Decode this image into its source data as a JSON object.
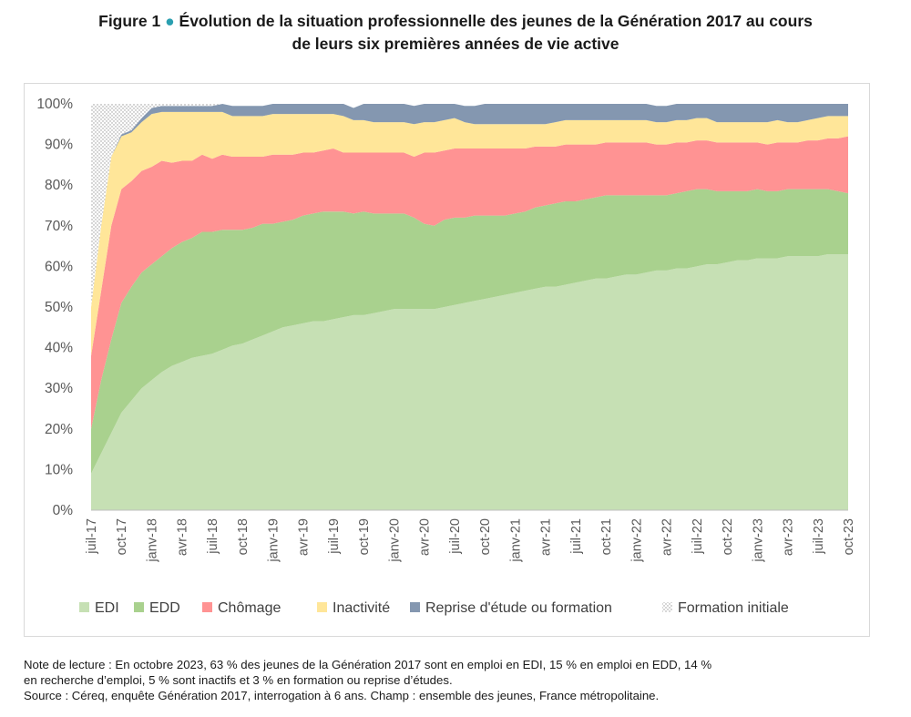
{
  "figure": {
    "label": "Figure 1",
    "bullet": "●",
    "title_line1": "Évolution de la situation professionnelle des jeunes de la Génération 2017 au cours",
    "title_line2": "de leurs six premières années de vie active"
  },
  "colors": {
    "EDI": "#c6e0b4",
    "EDD": "#a9d18e",
    "Chômage": "#ff9393",
    "Inactivité": "#ffe699",
    "Reprise d'étude ou formation": "#8497b0",
    "Formation initiale": "#f2f2f2",
    "accent": "#2a9fb0"
  },
  "notes": {
    "line1": "Note de lecture : En octobre 2023, 63 % des jeunes de la Génération 2017 sont en emploi en EDI, 15 % en emploi en EDD, 14 %",
    "line2": "en recherche d’emploi, 5 % sont inactifs et 3 % en formation ou reprise d’études.",
    "line3": "Source : Céreq, enquête Génération 2017, interrogation à 6 ans. Champ : ensemble des jeunes, France métropolitaine."
  },
  "chart_data": {
    "type": "area",
    "stacked": true,
    "ylim": [
      0,
      100
    ],
    "yticks": [
      0,
      10,
      20,
      30,
      40,
      50,
      60,
      70,
      80,
      90,
      100
    ],
    "ytick_labels": [
      "0%",
      "10%",
      "20%",
      "30%",
      "40%",
      "50%",
      "60%",
      "70%",
      "80%",
      "90%",
      "100%"
    ],
    "grid": false,
    "legend": "bottom",
    "x": [
      "juil-17",
      "août-17",
      "sept-17",
      "oct-17",
      "nov-17",
      "déc-17",
      "janv-18",
      "févr-18",
      "mars-18",
      "avr-18",
      "mai-18",
      "juin-18",
      "juil-18",
      "août-18",
      "sept-18",
      "oct-18",
      "nov-18",
      "déc-18",
      "janv-19",
      "févr-19",
      "mars-19",
      "avr-19",
      "mai-19",
      "juin-19",
      "juil-19",
      "août-19",
      "sept-19",
      "oct-19",
      "nov-19",
      "déc-19",
      "janv-20",
      "févr-20",
      "mars-20",
      "avr-20",
      "mai-20",
      "juin-20",
      "juil-20",
      "août-20",
      "sept-20",
      "oct-20",
      "nov-20",
      "déc-20",
      "janv-21",
      "févr-21",
      "mars-21",
      "avr-21",
      "mai-21",
      "juin-21",
      "juil-21",
      "août-21",
      "sept-21",
      "oct-21",
      "nov-21",
      "déc-21",
      "janv-22",
      "févr-22",
      "mars-22",
      "avr-22",
      "mai-22",
      "juin-22",
      "juil-22",
      "août-22",
      "sept-22",
      "oct-22",
      "nov-22",
      "déc-22",
      "janv-23",
      "févr-23",
      "mars-23",
      "avr-23",
      "mai-23",
      "juin-23",
      "juil-23",
      "août-23",
      "sept-23",
      "oct-23"
    ],
    "xtick_labels": [
      "juil-17",
      "oct-17",
      "janv-18",
      "avr-18",
      "juil-18",
      "oct-18",
      "janv-19",
      "avr-19",
      "juil-19",
      "oct-19",
      "janv-20",
      "avr-20",
      "juil-20",
      "oct-20",
      "janv-21",
      "avr-21",
      "juil-21",
      "oct-21",
      "janv-22",
      "avr-22",
      "juil-22",
      "oct-22",
      "janv-23",
      "avr-23",
      "juil-23",
      "oct-23"
    ],
    "xtick_every": 3,
    "series": [
      {
        "name": "EDI",
        "values": [
          9,
          14,
          19,
          24,
          27,
          30,
          32,
          34,
          35.5,
          36.5,
          37.5,
          38,
          38.5,
          39.5,
          40.5,
          41,
          42,
          43,
          44,
          45,
          45.5,
          46,
          46.5,
          46.5,
          47,
          47.5,
          48,
          48,
          48.5,
          49,
          49.5,
          49.5,
          49.5,
          49.5,
          49.5,
          50,
          50.5,
          51,
          51.5,
          52,
          52.5,
          53,
          53.5,
          54,
          54.5,
          55,
          55,
          55.5,
          56,
          56.5,
          57,
          57,
          57.5,
          58,
          58,
          58.5,
          59,
          59,
          59.5,
          59.5,
          60,
          60.5,
          60.5,
          61,
          61.5,
          61.5,
          62,
          62,
          62,
          62.5,
          62.5,
          62.5,
          62.5,
          63,
          63,
          63
        ]
      },
      {
        "name": "EDD",
        "values": [
          11,
          18,
          23,
          27,
          28,
          28.5,
          28.5,
          28.5,
          29,
          29.5,
          29.5,
          30.5,
          30,
          29.5,
          28.5,
          28,
          27.5,
          27.5,
          26.5,
          26,
          26,
          26.5,
          26.5,
          27,
          26.5,
          26,
          25,
          25.5,
          24.5,
          24,
          23.5,
          23.5,
          22.5,
          21,
          20.5,
          21.5,
          21.5,
          21,
          21,
          20.5,
          20,
          19.5,
          19.5,
          19.5,
          20,
          20,
          20.5,
          20.5,
          20,
          20,
          20,
          20.5,
          20,
          19.5,
          19.5,
          19,
          18.5,
          18.5,
          18.5,
          19,
          19,
          18.5,
          18,
          17.5,
          17,
          17,
          17,
          16.5,
          16.5,
          16.5,
          16.5,
          16.5,
          16.5,
          16,
          15.5,
          15
        ]
      },
      {
        "name": "Chômage",
        "values": [
          18,
          22,
          28,
          28,
          26,
          25,
          24,
          23.5,
          21,
          20,
          19,
          19,
          18,
          18.5,
          18,
          18,
          17.5,
          16.5,
          17,
          16.5,
          16,
          15.5,
          15,
          15,
          15.5,
          14.5,
          15,
          14.5,
          15,
          15,
          15,
          15,
          15,
          17.5,
          18,
          17,
          17,
          17,
          16.5,
          16.5,
          16.5,
          16.5,
          16,
          15.5,
          15,
          14.5,
          14,
          14,
          14,
          13.5,
          13,
          13,
          13,
          13,
          13,
          13,
          12.5,
          12.5,
          12.5,
          12,
          12,
          12,
          12,
          12,
          12,
          12,
          11.5,
          11.5,
          12,
          11.5,
          11.5,
          12,
          12,
          12.5,
          13,
          14
        ]
      },
      {
        "name": "Inactivité",
        "values": [
          12,
          16,
          17,
          13,
          12,
          12,
          13,
          12,
          12.5,
          12,
          12,
          10.5,
          11.5,
          10.5,
          10,
          10,
          10,
          10,
          10,
          10,
          10,
          9.5,
          9.5,
          9,
          8.5,
          9,
          8,
          8,
          7.5,
          7.5,
          7.5,
          7.5,
          8,
          7.5,
          7.5,
          7.5,
          7.5,
          6.5,
          6,
          6,
          6,
          6,
          6,
          6,
          5.5,
          5.5,
          6,
          6,
          6,
          6,
          6,
          5.5,
          5.5,
          5.5,
          5.5,
          5.5,
          5.5,
          5.5,
          5.5,
          5.5,
          5.5,
          5.5,
          5,
          5,
          5,
          5,
          5,
          5.5,
          5.5,
          5,
          5,
          5,
          5.5,
          5.5,
          5.5,
          5
        ]
      },
      {
        "name": "Reprise d'étude ou formation",
        "values": [
          0,
          0,
          0,
          0.5,
          0.5,
          1,
          1.5,
          1.5,
          1.5,
          1.5,
          1.5,
          1.5,
          1.5,
          2,
          2.5,
          2.5,
          2.5,
          2.5,
          2.5,
          2.5,
          2.5,
          2.5,
          2.5,
          2.5,
          2.5,
          3,
          3,
          4,
          4.5,
          4.5,
          4.5,
          4.5,
          4.5,
          4.5,
          4.5,
          4,
          3.5,
          4,
          4.5,
          5,
          5,
          5,
          5,
          5,
          5,
          5,
          4.5,
          4,
          4,
          4,
          4,
          4,
          4,
          4,
          4,
          4,
          4,
          4,
          4,
          4,
          3.5,
          3.5,
          4.5,
          4.5,
          4.5,
          4.5,
          4.5,
          4.5,
          4,
          4.5,
          4.5,
          4,
          3.5,
          3,
          3,
          3
        ]
      },
      {
        "name": "Formation initiale",
        "values": [
          50,
          30,
          13,
          7.5,
          6.5,
          3.5,
          1,
          0.5,
          0.5,
          0.5,
          0.5,
          0.5,
          0.5,
          0,
          0,
          0,
          0,
          0,
          0,
          0,
          0,
          0,
          0,
          0,
          0,
          0,
          0,
          0,
          0,
          0,
          0,
          0,
          0,
          0,
          0,
          0,
          0,
          0,
          0,
          0,
          0,
          0,
          0,
          0,
          0,
          0,
          0,
          0,
          0,
          0,
          0,
          0,
          0,
          0,
          0,
          0,
          0,
          0,
          0,
          0,
          0,
          0,
          0,
          0,
          0,
          0,
          0,
          0,
          0,
          0,
          0,
          0,
          0,
          0,
          0,
          0
        ]
      }
    ]
  }
}
